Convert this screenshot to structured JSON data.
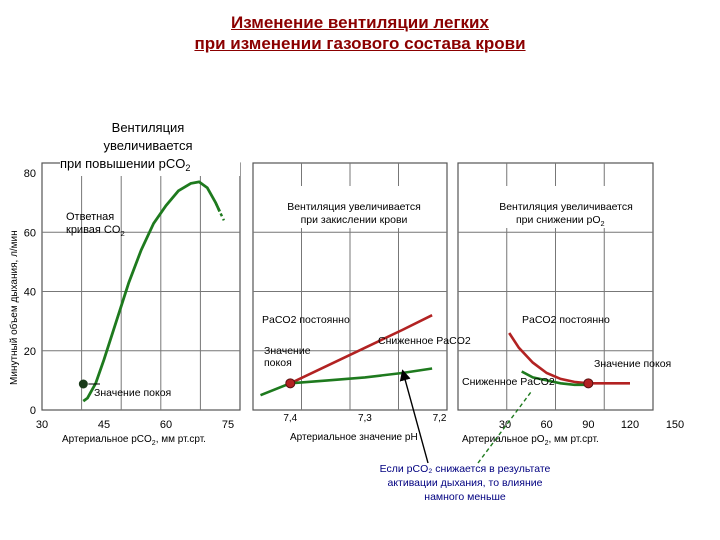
{
  "header": {
    "line1": "Изменение вентиляции легких",
    "line2": "при изменении газового состава крови"
  },
  "colors": {
    "title": "#8b0000",
    "red_curve": "#b22222",
    "green_curve": "#1e7a1e",
    "note": "#000080",
    "grid": "#555555"
  },
  "footnote": {
    "line1": "Если рCO₂ снижается  в результате",
    "line2": "активации дыхания, то влияние",
    "line3": "намного меньше"
  },
  "chart_data": [
    {
      "type": "line",
      "callout": [
        "Вентиляция",
        "увеличивается",
        "при повышении pCO2"
      ],
      "curve_label": [
        "Ответная",
        "кривая CO2"
      ],
      "ylabel": "Минутный объем дыхания, л/мин",
      "xlabel": "Артериальное рCO2, мм рт.срт.",
      "y_ticks": [
        "80",
        "60",
        "40",
        "20",
        "0"
      ],
      "x_ticks": [
        "30",
        "45",
        "60",
        "75"
      ],
      "xlim": [
        30,
        75
      ],
      "ylim": [
        0,
        80
      ],
      "series": [
        {
          "values": [
            [
              40,
              3
            ],
            [
              41,
              4
            ],
            [
              43,
              9
            ],
            [
              45,
              17
            ],
            [
              48,
              30
            ],
            [
              51,
              43
            ],
            [
              54,
              54
            ],
            [
              57,
              63
            ],
            [
              60,
              69
            ],
            [
              63,
              74
            ],
            [
              66,
              76.5
            ],
            [
              68,
              77
            ],
            [
              70,
              75
            ],
            [
              72,
              70
            ],
            [
              73,
              67
            ]
          ]
        }
      ],
      "rest_point": {
        "x": 40,
        "y": 8,
        "label": "Значение покоя"
      }
    },
    {
      "type": "line",
      "callout": [
        "Вентиляция увеличивается",
        "при закислении крови"
      ],
      "xlabel": "Артериальное значение рН",
      "x_ticks": [
        "7,4",
        "7,3",
        "7,2"
      ],
      "xlim": [
        7.45,
        7.19
      ],
      "ylim": [
        0,
        80
      ],
      "series": [
        {
          "name": "PaCO2 постоянно",
          "values": [
            [
              7.4,
              9
            ],
            [
              7.35,
              15
            ],
            [
              7.3,
              21
            ],
            [
              7.25,
              27
            ],
            [
              7.21,
              32
            ]
          ]
        },
        {
          "name": "Сниженное PaCO2",
          "values": [
            [
              7.44,
              5
            ],
            [
              7.4,
              9
            ],
            [
              7.35,
              10
            ],
            [
              7.3,
              11
            ],
            [
              7.25,
              12.5
            ],
            [
              7.21,
              14
            ]
          ]
        }
      ],
      "rest_point": {
        "x": 7.4,
        "y": 9,
        "label": "Значение покоя"
      }
    },
    {
      "type": "line",
      "callout": [
        "Вентиляция увеличивается",
        "при снижении pO2"
      ],
      "xlabel": "Артериальное рO2, мм рт.срт.",
      "x_ticks": [
        "30",
        "60",
        "90",
        "120",
        "150"
      ],
      "xlim": [
        30,
        150
      ],
      "ylim": [
        0,
        80
      ],
      "series": [
        {
          "name": "PaCO2 постоянно",
          "values": [
            [
              33,
              26
            ],
            [
              40,
              21
            ],
            [
              50,
              16
            ],
            [
              60,
              12.5
            ],
            [
              70,
              10.5
            ],
            [
              80,
              9.5
            ],
            [
              90,
              9
            ],
            [
              100,
              9
            ],
            [
              120,
              9
            ]
          ]
        },
        {
          "name": "Сниженное PaCO2",
          "values": [
            [
              42,
              13
            ],
            [
              50,
              11
            ],
            [
              60,
              10
            ],
            [
              70,
              9
            ],
            [
              80,
              8.5
            ],
            [
              90,
              8.5
            ]
          ]
        }
      ],
      "rest_point": {
        "x": 90,
        "y": 9,
        "label": "Значение покоя"
      }
    }
  ]
}
